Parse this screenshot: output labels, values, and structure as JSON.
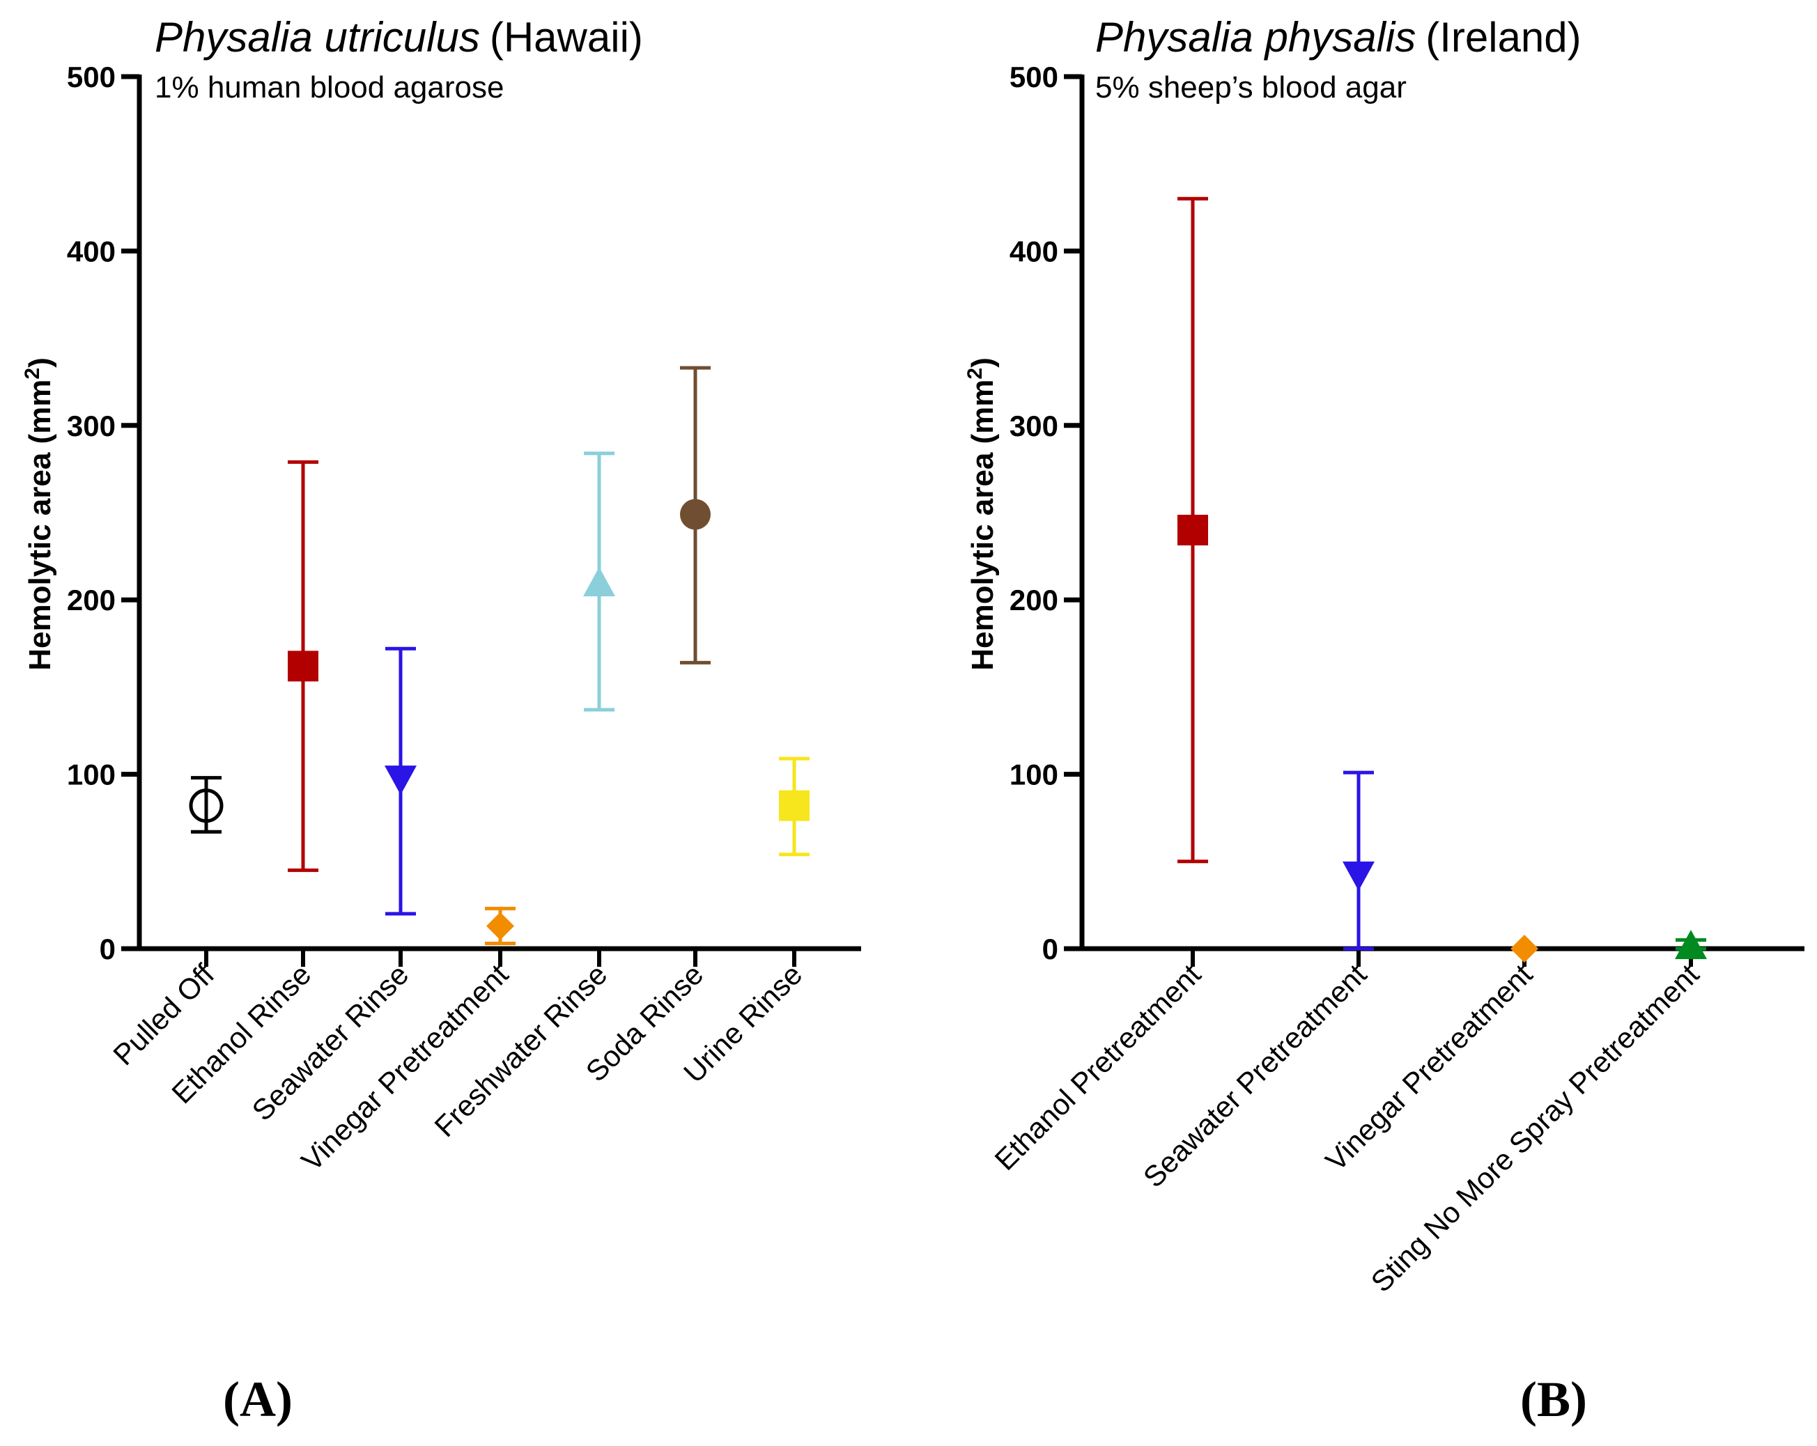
{
  "chart_data": [
    {
      "type": "scatter",
      "panel_label": "(A)",
      "title_species": "Physalia utriculus",
      "title_location": "(Hawaii)",
      "subtitle": "1% human blood agarose",
      "ylabel": "Hemolytic area (mm²)",
      "ylabel_main": "Hemolytic area (mm",
      "ylabel_sup": "2",
      "ylabel_end": ")",
      "ylim": [
        0,
        500
      ],
      "yticks": [
        "0",
        "100",
        "200",
        "300",
        "400",
        "500"
      ],
      "categories": [
        "Pulled Off",
        "Ethanol Rinse",
        "Seawater Rinse",
        "Vinegar Pretreatment",
        "Freshwater Rinse",
        "Soda Rinse",
        "Urine Rinse"
      ],
      "values": [
        82,
        162,
        97,
        13,
        210,
        249,
        82
      ],
      "err_low": [
        67,
        45,
        20,
        3,
        137,
        164,
        54
      ],
      "err_high": [
        98,
        279,
        172,
        23,
        284,
        333,
        109
      ],
      "markers": [
        "open-circle",
        "square",
        "triangle-down",
        "diamond",
        "triangle-up",
        "circle",
        "square"
      ],
      "colors": [
        "#000000",
        "#B20000",
        "#2A14E6",
        "#F28C00",
        "#8ACFDA",
        "#704E31",
        "#F7E51D"
      ]
    },
    {
      "type": "scatter",
      "panel_label": "(B)",
      "title_species": "Physalia physalis",
      "title_location": "(Ireland)",
      "subtitle": "5% sheep’s blood agar",
      "ylabel": "Hemolytic area (mm²)",
      "ylabel_main": "Hemolytic area (mm",
      "ylabel_sup": "2",
      "ylabel_end": ")",
      "ylim": [
        0,
        500
      ],
      "yticks": [
        "0",
        "100",
        "200",
        "300",
        "400",
        "500"
      ],
      "categories": [
        "Ethanol Pretreatment",
        "Seawater Pretreatment",
        "Vinegar Pretreatment",
        "Sting No More Spray Pretreatment"
      ],
      "values": [
        240,
        42,
        0,
        2
      ],
      "err_low": [
        50,
        0,
        0,
        0
      ],
      "err_high": [
        430,
        101,
        0,
        5
      ],
      "markers": [
        "square",
        "triangle-down",
        "diamond",
        "triangle-up"
      ],
      "colors": [
        "#B20000",
        "#2A14E6",
        "#F28C00",
        "#008A1F"
      ]
    }
  ]
}
